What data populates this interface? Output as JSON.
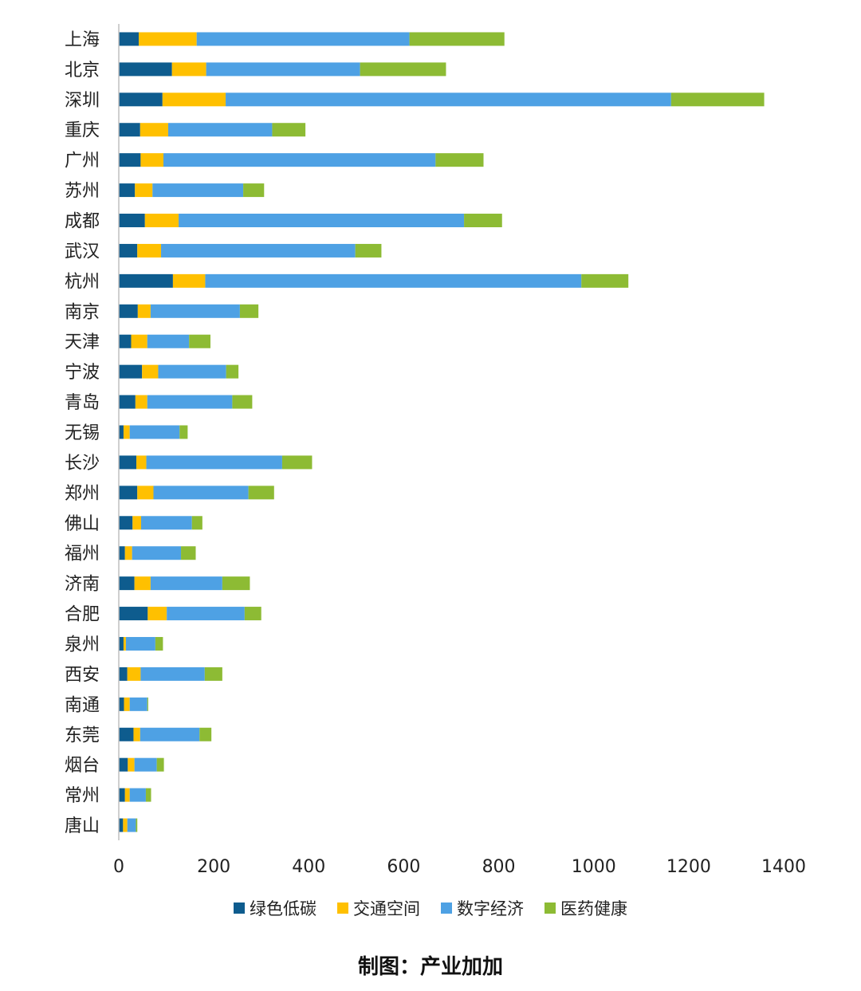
{
  "chart_data": {
    "type": "bar",
    "orientation": "horizontal",
    "stacked": true,
    "categories": [
      "上海",
      "北京",
      "深圳",
      "重庆",
      "广州",
      "苏州",
      "成都",
      "武汉",
      "杭州",
      "南京",
      "天津",
      "宁波",
      "青岛",
      "无锡",
      "长沙",
      "郑州",
      "佛山",
      "福州",
      "济南",
      "合肥",
      "泉州",
      "西安",
      "南通",
      "东莞",
      "烟台",
      "常州",
      "唐山"
    ],
    "series": [
      {
        "name": "绿色低碳",
        "color": "#0e5c8e",
        "values": [
          42,
          112,
          92,
          45,
          46,
          34,
          55,
          39,
          114,
          40,
          26,
          49,
          35,
          10,
          37,
          39,
          29,
          13,
          33,
          61,
          10,
          18,
          11,
          31,
          19,
          13,
          9
        ]
      },
      {
        "name": "交通空间",
        "color": "#ffc000",
        "values": [
          122,
          72,
          133,
          59,
          48,
          37,
          71,
          50,
          68,
          27,
          34,
          34,
          25,
          13,
          21,
          34,
          18,
          15,
          34,
          40,
          5,
          28,
          12,
          14,
          14,
          10,
          9
        ]
      },
      {
        "name": "数字经济",
        "color": "#4ea1e4",
        "values": [
          448,
          324,
          938,
          219,
          573,
          191,
          601,
          409,
          792,
          188,
          88,
          143,
          179,
          105,
          286,
          200,
          107,
          103,
          151,
          164,
          62,
          135,
          37,
          125,
          47,
          34,
          18
        ]
      },
      {
        "name": "医药健康",
        "color": "#8dbb34",
        "values": [
          200,
          181,
          196,
          70,
          101,
          44,
          80,
          55,
          99,
          39,
          45,
          26,
          42,
          17,
          63,
          54,
          22,
          31,
          58,
          35,
          16,
          37,
          2,
          25,
          15,
          11,
          3
        ]
      }
    ],
    "xlim": [
      0,
      1400
    ],
    "xticks": [
      0,
      200,
      400,
      600,
      800,
      1000,
      1200,
      1400
    ],
    "legend_position": "bottom",
    "grid": false
  },
  "caption": "制图：产业加加"
}
